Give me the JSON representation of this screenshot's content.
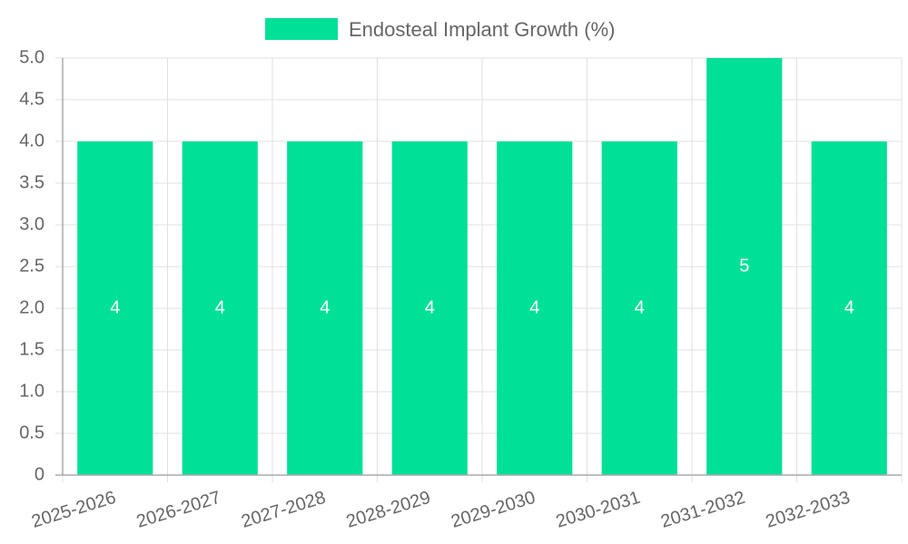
{
  "chart_data": {
    "type": "bar",
    "title": "",
    "xlabel": "",
    "ylabel": "",
    "categories": [
      "2025-2026",
      "2026-2027",
      "2027-2028",
      "2028-2029",
      "2029-2030",
      "2030-2031",
      "2031-2032",
      "2032-2033"
    ],
    "series": [
      {
        "name": "Endosteal Implant Growth (%)",
        "values": [
          4,
          4,
          4,
          4,
          4,
          4,
          5,
          4
        ],
        "color": "#00e096"
      }
    ],
    "ylim": [
      0,
      5
    ],
    "yticks": [
      "0",
      "0.5",
      "1.0",
      "1.5",
      "2.0",
      "2.5",
      "3.0",
      "3.5",
      "4.0",
      "4.5",
      "5.0"
    ],
    "grid": true,
    "legend_position": "top-center",
    "data_labels": true
  }
}
